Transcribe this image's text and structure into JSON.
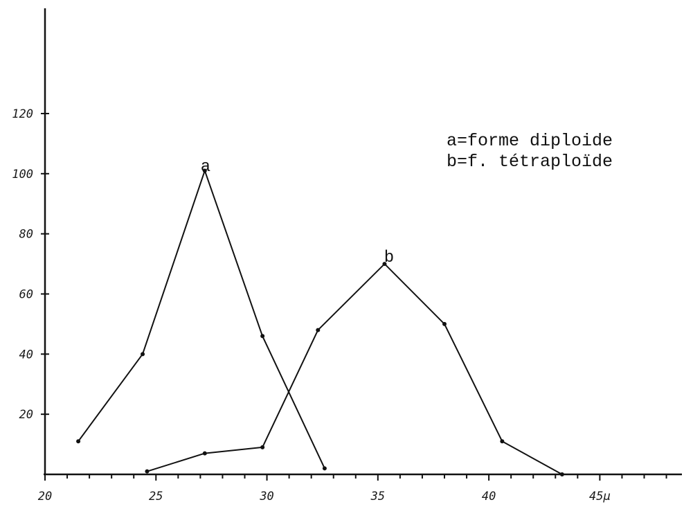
{
  "chart_data": {
    "type": "line",
    "title": "",
    "xlabel": "",
    "ylabel": "",
    "x_ticks": [
      "20",
      "25",
      "30",
      "35",
      "40",
      "45μ"
    ],
    "y_ticks": [
      "20",
      "40",
      "60",
      "80",
      "100",
      "120"
    ],
    "xlim": [
      20,
      48.7
    ],
    "ylim": [
      0,
      155
    ],
    "grid": false,
    "legend_position": "top-right",
    "legend": [
      "a=forme diploide",
      "b=f. tétraploïde"
    ],
    "series": [
      {
        "name": "a",
        "x": [
          21.5,
          24.4,
          27.2,
          29.8,
          32.6
        ],
        "y": [
          11,
          40,
          101,
          46,
          2
        ]
      },
      {
        "name": "b",
        "x": [
          24.6,
          27.2,
          29.8,
          32.3,
          35.3,
          38.0,
          40.6,
          43.3
        ],
        "y": [
          1,
          7,
          9,
          48,
          70,
          50,
          11,
          0
        ]
      }
    ]
  }
}
